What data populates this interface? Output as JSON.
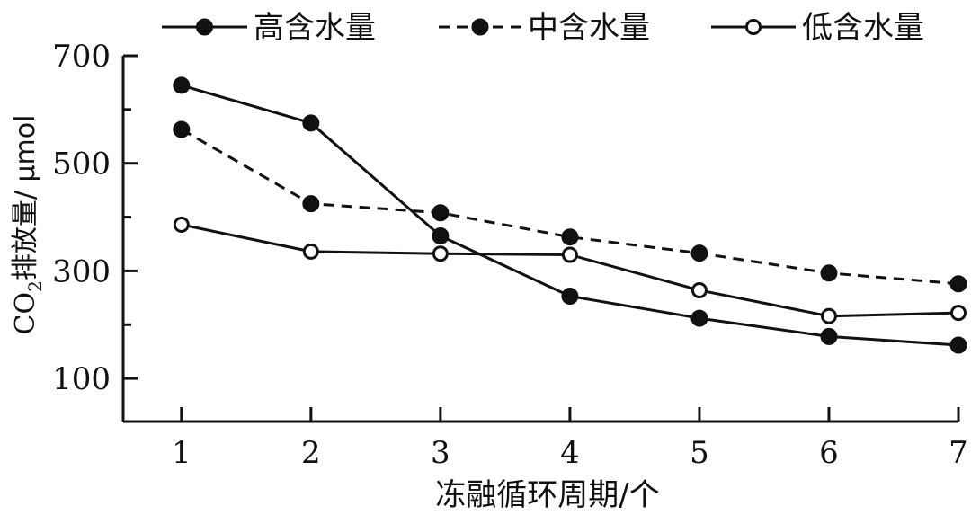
{
  "chart_data": {
    "type": "line",
    "xlabel": "冻融循环周期/个",
    "ylabel": {
      "prefix": "CO",
      "sub": "2",
      "suffix": "排放量/ μmol"
    },
    "x": [
      1,
      2,
      3,
      4,
      5,
      6,
      7
    ],
    "x_ticks": [
      "1",
      "2",
      "3",
      "4",
      "5",
      "6",
      "7"
    ],
    "xlim": [
      0.55,
      7
    ],
    "ylim": [
      20,
      700
    ],
    "y_ticks": [
      100,
      300,
      500,
      700
    ],
    "y_tick_labels": [
      "100",
      "300",
      "500",
      "700"
    ],
    "y_minor_ticks": [
      200,
      400,
      600
    ],
    "grid": false,
    "legend_position": "top",
    "series": [
      {
        "name": "高含水量",
        "style": "solid",
        "marker": "filled",
        "values": [
          645,
          575,
          365,
          253,
          212,
          178,
          162
        ]
      },
      {
        "name": "中含水量",
        "style": "dashed",
        "marker": "filled",
        "values": [
          563,
          425,
          408,
          363,
          333,
          296,
          276
        ]
      },
      {
        "name": "低含水量",
        "style": "solid",
        "marker": "open",
        "values": [
          386,
          336,
          332,
          330,
          264,
          216,
          222
        ]
      }
    ],
    "colors": {
      "ink": "#111111",
      "background": "#ffffff"
    }
  }
}
